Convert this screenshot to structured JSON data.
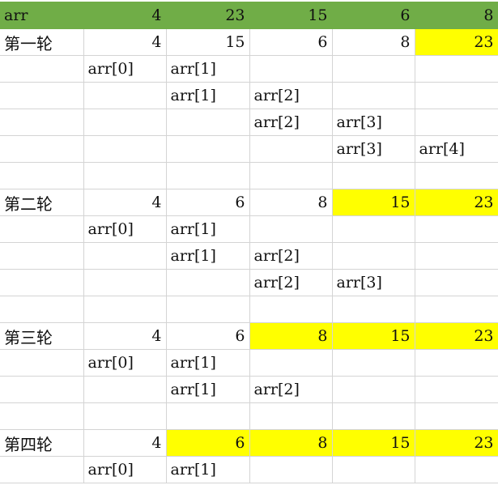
{
  "header": [
    "arr",
    "4",
    "23",
    "15",
    "6",
    "8"
  ],
  "colors": {
    "header_bg": "#70ad47",
    "highlight": "#ffff00",
    "grid": "#d4d4d4"
  },
  "rows": [
    {
      "cells": [
        "第一轮",
        "4",
        "15",
        "6",
        "8",
        "23"
      ],
      "highlight": [
        5
      ]
    },
    {
      "cells": [
        "",
        "arr[0]",
        "arr[1]",
        "",
        "",
        ""
      ],
      "highlight": []
    },
    {
      "cells": [
        "",
        "",
        "arr[1]",
        "arr[2]",
        "",
        ""
      ],
      "highlight": []
    },
    {
      "cells": [
        "",
        "",
        "",
        "arr[2]",
        "arr[3]",
        ""
      ],
      "highlight": []
    },
    {
      "cells": [
        "",
        "",
        "",
        "",
        "arr[3]",
        "arr[4]"
      ],
      "highlight": []
    },
    {
      "cells": [
        "",
        "",
        "",
        "",
        "",
        ""
      ],
      "highlight": []
    },
    {
      "cells": [
        "第二轮",
        "4",
        "6",
        "8",
        "15",
        "23"
      ],
      "highlight": [
        4,
        5
      ]
    },
    {
      "cells": [
        "",
        "arr[0]",
        "arr[1]",
        "",
        "",
        ""
      ],
      "highlight": []
    },
    {
      "cells": [
        "",
        "",
        "arr[1]",
        "arr[2]",
        "",
        ""
      ],
      "highlight": []
    },
    {
      "cells": [
        "",
        "",
        "",
        "arr[2]",
        "arr[3]",
        ""
      ],
      "highlight": []
    },
    {
      "cells": [
        "",
        "",
        "",
        "",
        "",
        ""
      ],
      "highlight": []
    },
    {
      "cells": [
        "第三轮",
        "4",
        "6",
        "8",
        "15",
        "23"
      ],
      "highlight": [
        3,
        4,
        5
      ]
    },
    {
      "cells": [
        "",
        "arr[0]",
        "arr[1]",
        "",
        "",
        ""
      ],
      "highlight": []
    },
    {
      "cells": [
        "",
        "",
        "arr[1]",
        "arr[2]",
        "",
        ""
      ],
      "highlight": []
    },
    {
      "cells": [
        "",
        "",
        "",
        "",
        "",
        ""
      ],
      "highlight": []
    },
    {
      "cells": [
        "第四轮",
        "4",
        "6",
        "8",
        "15",
        "23"
      ],
      "highlight": [
        2,
        3,
        4,
        5
      ]
    },
    {
      "cells": [
        "",
        "arr[0]",
        "arr[1]",
        "",
        "",
        ""
      ],
      "highlight": []
    }
  ]
}
